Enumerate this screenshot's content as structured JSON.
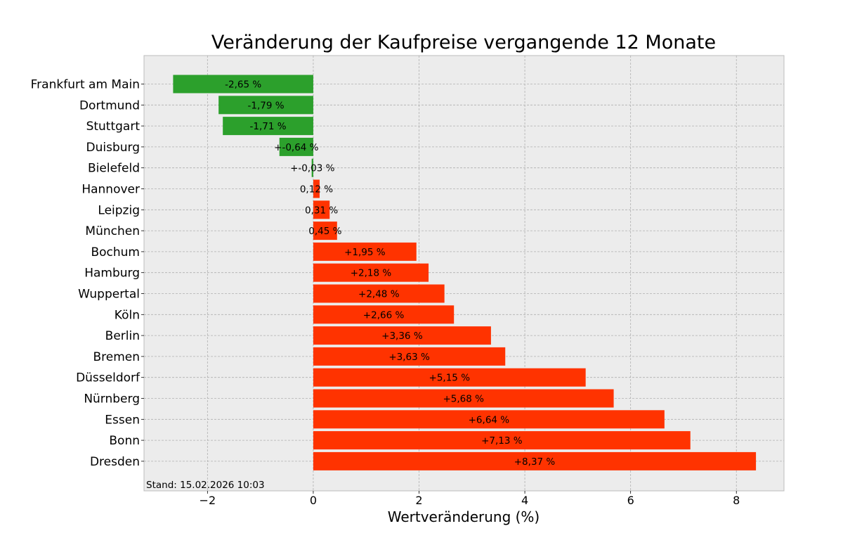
{
  "chart_data": {
    "type": "bar",
    "orientation": "horizontal",
    "title": "Veränderung der Kaufpreise vergangende 12 Monate",
    "xlabel": "Wertveränderung (%)",
    "ylabel": "",
    "xlim": [
      -3.2,
      8.9
    ],
    "xticks": [
      -2,
      0,
      2,
      4,
      6,
      8
    ],
    "xtick_labels": [
      "−2",
      "0",
      "2",
      "4",
      "6",
      "8"
    ],
    "grid": true,
    "note": "Stand: 15.02.2026 10:03",
    "colors": {
      "negative": "#2ca02c",
      "positive": "#ff3300",
      "background": "#ececec"
    },
    "categories": [
      "Frankfurt am Main",
      "Dortmund",
      "Stuttgart",
      "Duisburg",
      "Bielefeld",
      "Hannover",
      "Leipzig",
      "München",
      "Bochum",
      "Hamburg",
      "Wuppertal",
      "Köln",
      "Berlin",
      "Bremen",
      "Düsseldorf",
      "Nürnberg",
      "Essen",
      "Bonn",
      "Dresden"
    ],
    "values": [
      -2.65,
      -1.79,
      -1.71,
      -0.64,
      -0.03,
      0.12,
      0.31,
      0.45,
      1.95,
      2.18,
      2.48,
      2.66,
      3.36,
      3.63,
      5.15,
      5.68,
      6.64,
      7.13,
      8.37
    ],
    "data_labels": [
      "-2,65 %",
      "-1,79 %",
      "-1,71 %",
      "+-0,64 %",
      "+-0,03 %",
      "0,12 %",
      "0,31 %",
      "0,45 %",
      "+1,95 %",
      "+2,18 %",
      "+2,48 %",
      "+2,66 %",
      "+3,36 %",
      "+3,63 %",
      "+5,15 %",
      "+5,68 %",
      "+6,64 %",
      "+7,13 %",
      "+8,37 %"
    ]
  }
}
